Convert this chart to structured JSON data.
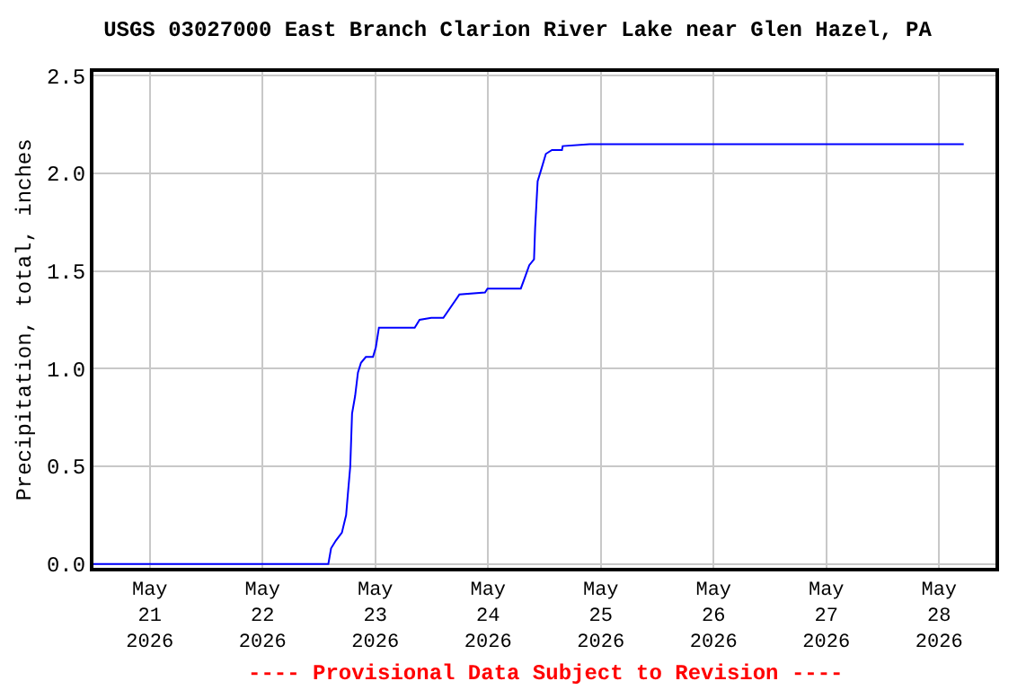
{
  "chart_data": {
    "type": "line",
    "title": "USGS 03027000 East Branch Clarion River Lake near Glen Hazel, PA",
    "ylabel": "Precipitation, total, inches",
    "x": [
      "2026-05-20T12:00",
      "2026-05-22T14:00",
      "2026-05-22T14:35",
      "2026-05-22T15:37",
      "2026-05-22T16:53",
      "2026-05-22T17:47",
      "2026-05-22T18:10",
      "2026-05-22T18:40",
      "2026-05-22T19:03",
      "2026-05-22T19:42",
      "2026-05-22T20:18",
      "2026-05-22T20:57",
      "2026-05-22T21:59",
      "2026-05-22T23:30",
      "2026-05-23T00:07",
      "2026-05-23T00:46",
      "2026-05-23T08:23",
      "2026-05-23T09:25",
      "2026-05-23T11:55",
      "2026-05-23T14:29",
      "2026-05-23T17:54",
      "2026-05-23T23:21",
      "2026-05-23T23:53",
      "2026-05-24T06:58",
      "2026-05-24T07:53",
      "2026-05-24T08:46",
      "2026-05-24T09:47",
      "2026-05-24T10:01",
      "2026-05-24T10:33",
      "2026-05-24T11:19",
      "2026-05-24T12:18",
      "2026-05-24T13:36",
      "2026-05-24T15:44",
      "2026-05-24T15:53",
      "2026-05-24T21:36",
      "2026-05-28T05:15"
    ],
    "series": [
      {
        "color": "#0000ff",
        "values": [
          0,
          0,
          0.08,
          0.12,
          0.16,
          0.25,
          0.36,
          0.5,
          0.77,
          0.86,
          0.98,
          1.03,
          1.06,
          1.06,
          1.11,
          1.21,
          1.21,
          1.25,
          1.26,
          1.26,
          1.38,
          1.39,
          1.41,
          1.41,
          1.47,
          1.53,
          1.56,
          1.72,
          1.96,
          2.02,
          2.1,
          2.12,
          2.12,
          2.14,
          2.15,
          2.15
        ]
      }
    ],
    "xlim": [
      "2026-05-20T12:00",
      "2026-05-28T12:00"
    ],
    "xticks": [
      {
        "value": "2026-05-21",
        "label": "May\n21\n2026"
      },
      {
        "value": "2026-05-22",
        "label": "May\n22\n2026"
      },
      {
        "value": "2026-05-23",
        "label": "May\n23\n2026"
      },
      {
        "value": "2026-05-24",
        "label": "May\n24\n2026"
      },
      {
        "value": "2026-05-25",
        "label": "May\n25\n2026"
      },
      {
        "value": "2026-05-26",
        "label": "May\n26\n2026"
      },
      {
        "value": "2026-05-27",
        "label": "May\n27\n2026"
      },
      {
        "value": "2026-05-28",
        "label": "May\n28\n2026"
      }
    ],
    "ylim": [
      -0.02,
      2.52
    ],
    "yticks": [
      {
        "value": 0,
        "label": "0.0"
      },
      {
        "value": 0.5,
        "label": "0.5"
      },
      {
        "value": 1,
        "label": "1.0"
      },
      {
        "value": 1.5,
        "label": "1.5"
      },
      {
        "value": 2,
        "label": "2.0"
      },
      {
        "value": 2.5,
        "label": "2.5"
      }
    ],
    "grid": true,
    "marker": "none",
    "line_style": "solid",
    "annotations": [
      "---- Provisional Data Subject to Revision ----"
    ]
  }
}
